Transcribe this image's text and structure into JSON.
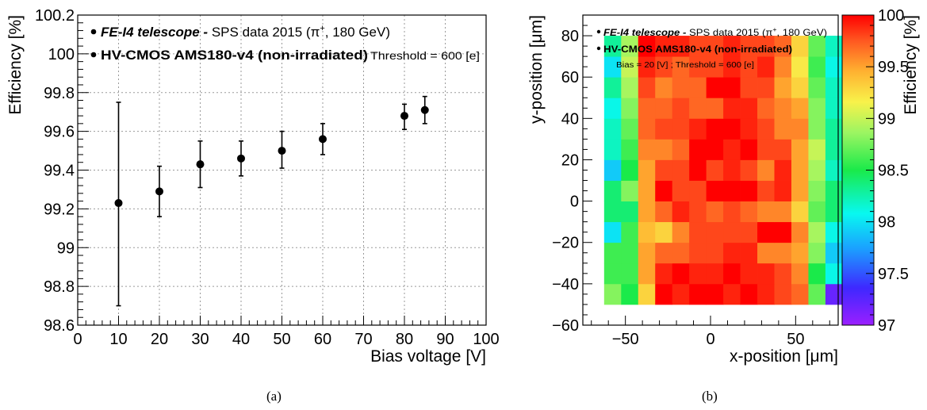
{
  "figure": {
    "subcaption_a": "(a)",
    "subcaption_b": "(b)"
  },
  "legend": {
    "line1_bold": "FE-I4 telescope -",
    "line1_text": " SPS data 2015 (π",
    "line1_sup": "+",
    "line1_tail": ", 180 GeV)",
    "line2_bold": "HV-CMOS AMS180-v4 (non-irradiated)",
    "threshold": "Threshold = 600 [e]",
    "bias_threshold": "Bias = 20 [V] ; Threshold = 600 [e]"
  },
  "chart_data": [
    {
      "type": "scatter",
      "xlabel": "Bias voltage [V]",
      "ylabel": "Efficiency [%]",
      "xlim": [
        0,
        100
      ],
      "ylim": [
        98.6,
        100.2
      ],
      "grid": true,
      "x_ticks": [
        "0",
        "10",
        "20",
        "30",
        "40",
        "50",
        "60",
        "70",
        "80",
        "90",
        "100"
      ],
      "y_ticks": [
        "98.6",
        "98.8",
        "99",
        "99.2",
        "99.4",
        "99.6",
        "99.8",
        "100",
        "100.2"
      ],
      "points": [
        {
          "x": 10,
          "y": 99.23,
          "err_up": 0.52,
          "err_down": 0.53
        },
        {
          "x": 20,
          "y": 99.29,
          "err_up": 0.13,
          "err_down": 0.13
        },
        {
          "x": 30,
          "y": 99.43,
          "err_up": 0.12,
          "err_down": 0.12
        },
        {
          "x": 40,
          "y": 99.46,
          "err_up": 0.09,
          "err_down": 0.09
        },
        {
          "x": 50,
          "y": 99.5,
          "err_up": 0.1,
          "err_down": 0.09
        },
        {
          "x": 60,
          "y": 99.56,
          "err_up": 0.08,
          "err_down": 0.08
        },
        {
          "x": 80,
          "y": 99.68,
          "err_up": 0.06,
          "err_down": 0.07
        },
        {
          "x": 85,
          "y": 99.71,
          "err_up": 0.07,
          "err_down": 0.07
        }
      ]
    },
    {
      "type": "heatmap",
      "xlabel": "x-position [μm]",
      "ylabel": "y-position [μm]",
      "zlabel": "Efficiency [%]",
      "xlim": [
        -75,
        75
      ],
      "ylim": [
        -60,
        90
      ],
      "zlim": [
        97,
        100
      ],
      "x_ticks": [
        "−50",
        "0",
        "50"
      ],
      "y_ticks": [
        "−60",
        "−40",
        "−20",
        "0",
        "20",
        "40",
        "60",
        "80"
      ],
      "z_ticks": [
        "97",
        "97.5",
        "98",
        "98.5",
        "99",
        "99.5",
        "100"
      ],
      "cells_x0": -62.5,
      "cells_y0": -50,
      "cell_size": 10,
      "values_rows_from_bottom": [
        [
          98.8,
          98.5,
          99.3,
          100,
          99.9,
          100,
          100,
          99.9,
          100,
          99.9,
          99.8,
          99.7,
          98.7,
          97.2
        ],
        [
          98.6,
          98.6,
          99.5,
          99.9,
          100,
          99.9,
          99.9,
          100,
          99.9,
          99.9,
          99.8,
          99.6,
          98.5,
          98.1
        ],
        [
          98.6,
          98.6,
          99.5,
          99.7,
          99.7,
          99.8,
          99.8,
          99.9,
          99.9,
          99.6,
          99.6,
          99.5,
          98.8,
          97.9
        ],
        [
          98.0,
          98.6,
          99.4,
          99.3,
          99.6,
          99.8,
          99.8,
          99.8,
          99.8,
          100,
          100,
          99.6,
          98.9,
          98.1
        ],
        [
          98.4,
          98.4,
          99.5,
          99.7,
          99.9,
          99.8,
          99.7,
          99.8,
          99.7,
          99.6,
          99.6,
          99.3,
          98.7,
          98.4
        ],
        [
          98.4,
          98.8,
          99.5,
          100,
          99.8,
          99.8,
          100,
          100,
          100,
          99.8,
          99.9,
          99.5,
          98.8,
          98.4
        ],
        [
          97.9,
          98.5,
          99.5,
          99.8,
          99.8,
          100,
          99.8,
          99.9,
          99.8,
          99.6,
          99.9,
          99.5,
          98.9,
          98.2
        ],
        [
          98.2,
          98.6,
          99.6,
          99.6,
          99.7,
          100,
          100,
          99.9,
          100,
          99.8,
          99.8,
          99.5,
          99.0,
          98.3
        ],
        [
          98.2,
          98.7,
          99.7,
          99.8,
          99.8,
          99.9,
          100,
          100,
          99.9,
          99.8,
          99.6,
          99.6,
          98.8,
          98.3
        ],
        [
          98.1,
          98.8,
          99.7,
          99.7,
          99.8,
          99.7,
          99.7,
          99.9,
          99.9,
          99.7,
          99.6,
          99.5,
          98.8,
          98.2
        ],
        [
          98.3,
          98.9,
          99.8,
          99.6,
          99.7,
          99.7,
          100,
          100,
          99.8,
          99.8,
          99.5,
          99.3,
          98.7,
          98.2
        ],
        [
          98.0,
          99.0,
          99.9,
          99.8,
          99.7,
          99.8,
          99.8,
          99.9,
          99.8,
          99.9,
          99.6,
          99.2,
          98.6,
          98.1
        ],
        [
          98.3,
          98.9,
          100,
          99.9,
          99.9,
          99.8,
          99.8,
          99.9,
          99.8,
          99.8,
          99.7,
          99.3,
          98.7,
          98.2
        ]
      ]
    }
  ]
}
